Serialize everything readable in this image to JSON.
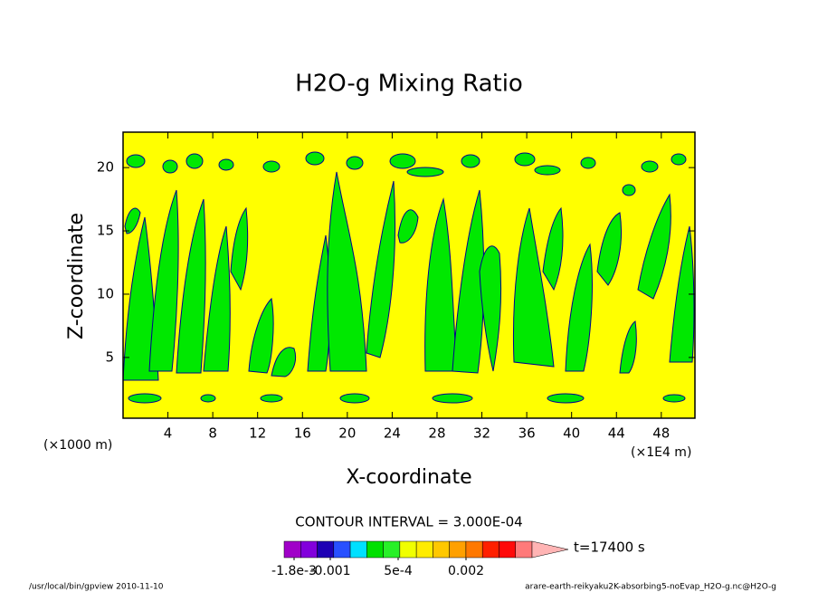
{
  "chart_data": {
    "type": "contour",
    "title": "H2O-g Mixing Ratio",
    "x_label": "X-coordinate",
    "y_label": "Z-coordinate",
    "x_unit_left": "(×1000 m)",
    "x_unit_right": "(×1E4 m)",
    "xlim": [
      0,
      51
    ],
    "ylim": [
      0.2,
      22.8
    ],
    "xticks": [
      4,
      8,
      12,
      16,
      20,
      24,
      28,
      32,
      36,
      40,
      44,
      48
    ],
    "yticks": [
      5,
      10,
      15,
      20
    ],
    "background_color": "#ffff00",
    "region_color": "#00e800",
    "line_color": "#000090",
    "contour_interval_label": "CONTOUR INTERVAL = 3.000E-04",
    "time_label": "t=17400 s",
    "colorbar": {
      "colors": [
        "#a000c8",
        "#8200dc",
        "#1e00b4",
        "#2850ff",
        "#00e0ff",
        "#00e000",
        "#28f028",
        "#f0ff00",
        "#ffec00",
        "#ffc800",
        "#ffa000",
        "#ff7800",
        "#ff2000",
        "#ff0a0a",
        "#ff7a7a"
      ],
      "extend_color": "#ffb4b4",
      "lim": [
        -0.00202,
        0.00346
      ],
      "ticks": [
        {
          "value": -0.0018,
          "label": "-1.8e-3"
        },
        {
          "value": -0.001,
          "label": "-0.001"
        },
        {
          "value": 0.0005,
          "label": "5e-4"
        },
        {
          "value": 0.002,
          "label": "0.002"
        }
      ]
    },
    "footer_left": "/usr/local/bin/gpview  2010-11-10",
    "footer_right": "arare-earth-reikyaku2K-absorbing5-noEvap_H2O-g.nc@H2O-g"
  }
}
